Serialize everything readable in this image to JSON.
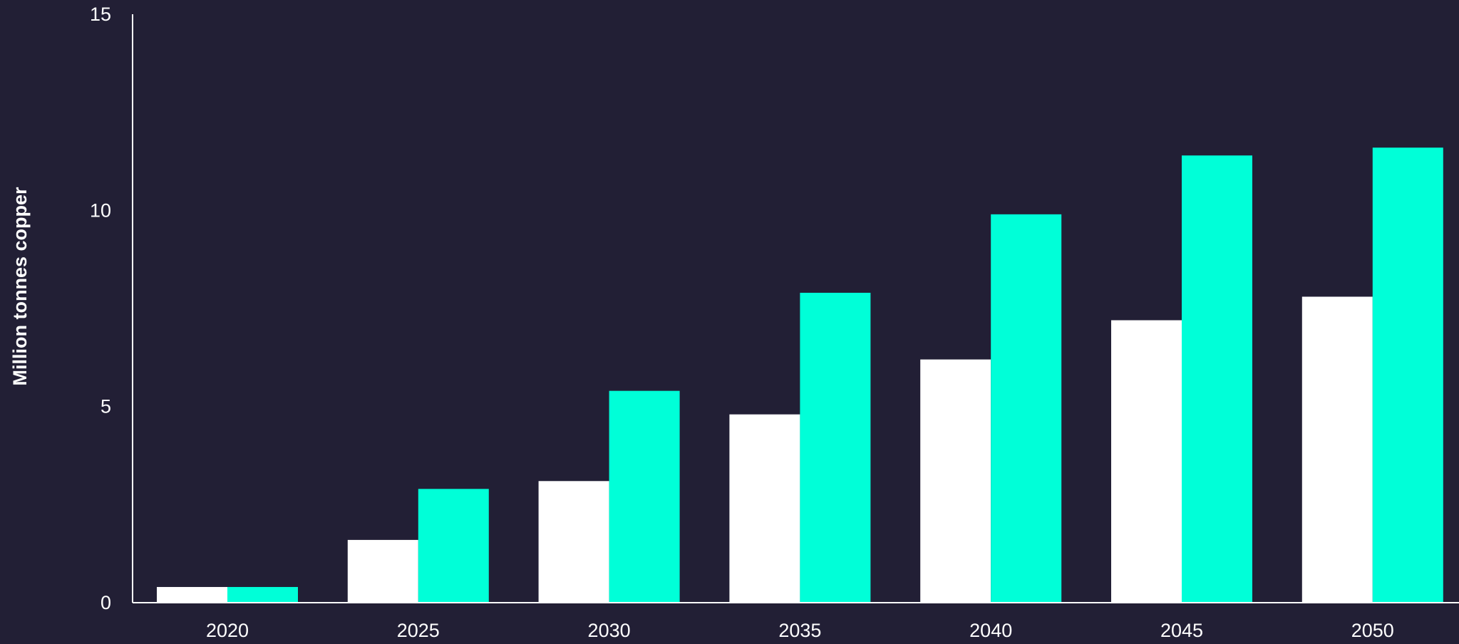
{
  "chart_data": {
    "type": "bar",
    "ylabel": "Million tonnes copper",
    "xlabel": "",
    "ylim": [
      0,
      15
    ],
    "yticks": [
      0,
      5,
      10,
      15
    ],
    "categories": [
      "2020",
      "2025",
      "2030",
      "2035",
      "2040",
      "2045",
      "2050"
    ],
    "grid": false,
    "legend": "none",
    "series": [
      {
        "color": "#ffffff",
        "values": [
          0.4,
          1.6,
          3.1,
          4.8,
          6.2,
          7.2,
          7.8
        ]
      },
      {
        "color": "#00ffd8",
        "values": [
          0.4,
          2.9,
          5.4,
          7.9,
          9.9,
          11.4,
          11.6
        ]
      }
    ]
  },
  "colors": {
    "background": "#221f35",
    "axis": "#ffffff",
    "text": "#ffffff"
  }
}
